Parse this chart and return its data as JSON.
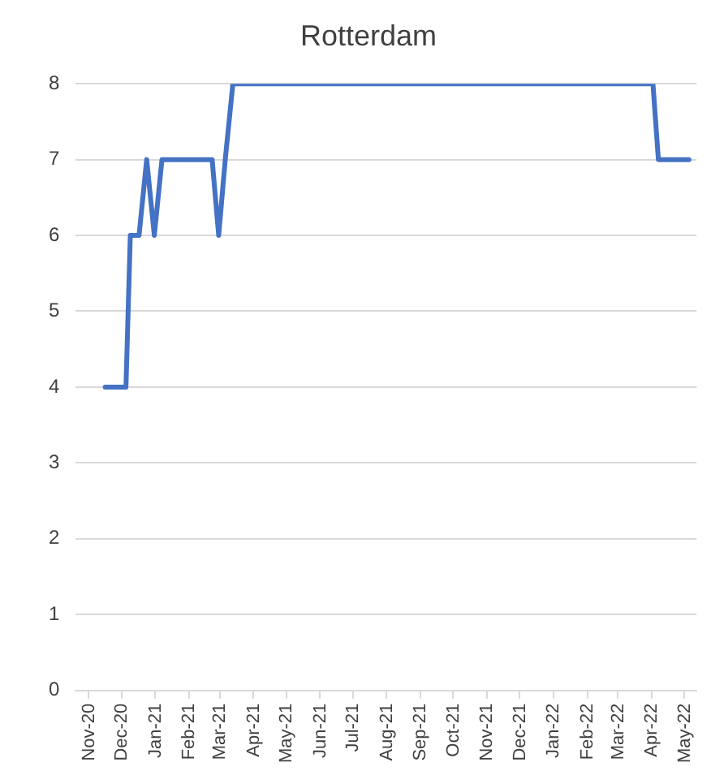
{
  "chart_data": {
    "type": "line",
    "title": "Rotterdam",
    "x": [
      "2020-11-16",
      "2020-12-05",
      "2020-12-09",
      "2020-12-17",
      "2020-12-24",
      "2020-12-31",
      "2021-01-07",
      "2021-02-22",
      "2021-02-28",
      "2021-03-06",
      "2021-03-13",
      "2022-04-02",
      "2022-04-07",
      "2022-05-05"
    ],
    "series": [
      {
        "color": "#4472c4",
        "values": [
          4,
          4,
          6,
          6,
          7,
          6,
          7,
          7,
          6,
          7,
          8,
          8,
          7,
          7
        ]
      }
    ],
    "xlim": [
      "2020-10-20",
      "2022-05-12"
    ],
    "xticks": [
      {
        "value": "2020-11-01",
        "label": "Nov-20"
      },
      {
        "value": "2020-12-01",
        "label": "Dec-20"
      },
      {
        "value": "2021-01-01",
        "label": "Jan-21"
      },
      {
        "value": "2021-02-01",
        "label": "Feb-21"
      },
      {
        "value": "2021-03-01",
        "label": "Mar-21"
      },
      {
        "value": "2021-04-01",
        "label": "Apr-21"
      },
      {
        "value": "2021-05-01",
        "label": "May-21"
      },
      {
        "value": "2021-06-01",
        "label": "Jun-21"
      },
      {
        "value": "2021-07-01",
        "label": "Jul-21"
      },
      {
        "value": "2021-08-01",
        "label": "Aug-21"
      },
      {
        "value": "2021-09-01",
        "label": "Sep-21"
      },
      {
        "value": "2021-10-01",
        "label": "Oct-21"
      },
      {
        "value": "2021-11-01",
        "label": "Nov-21"
      },
      {
        "value": "2021-12-01",
        "label": "Dec-21"
      },
      {
        "value": "2022-01-01",
        "label": "Jan-22"
      },
      {
        "value": "2022-02-01",
        "label": "Feb-22"
      },
      {
        "value": "2022-03-01",
        "label": "Mar-22"
      },
      {
        "value": "2022-04-01",
        "label": "Apr-22"
      },
      {
        "value": "2022-05-01",
        "label": "May-22"
      }
    ],
    "ylim": [
      0,
      8
    ],
    "yticks": [
      0,
      1,
      2,
      3,
      4,
      5,
      6,
      7,
      8
    ],
    "grid": "y",
    "legend": false,
    "marker": "none",
    "line_style": "solid"
  }
}
